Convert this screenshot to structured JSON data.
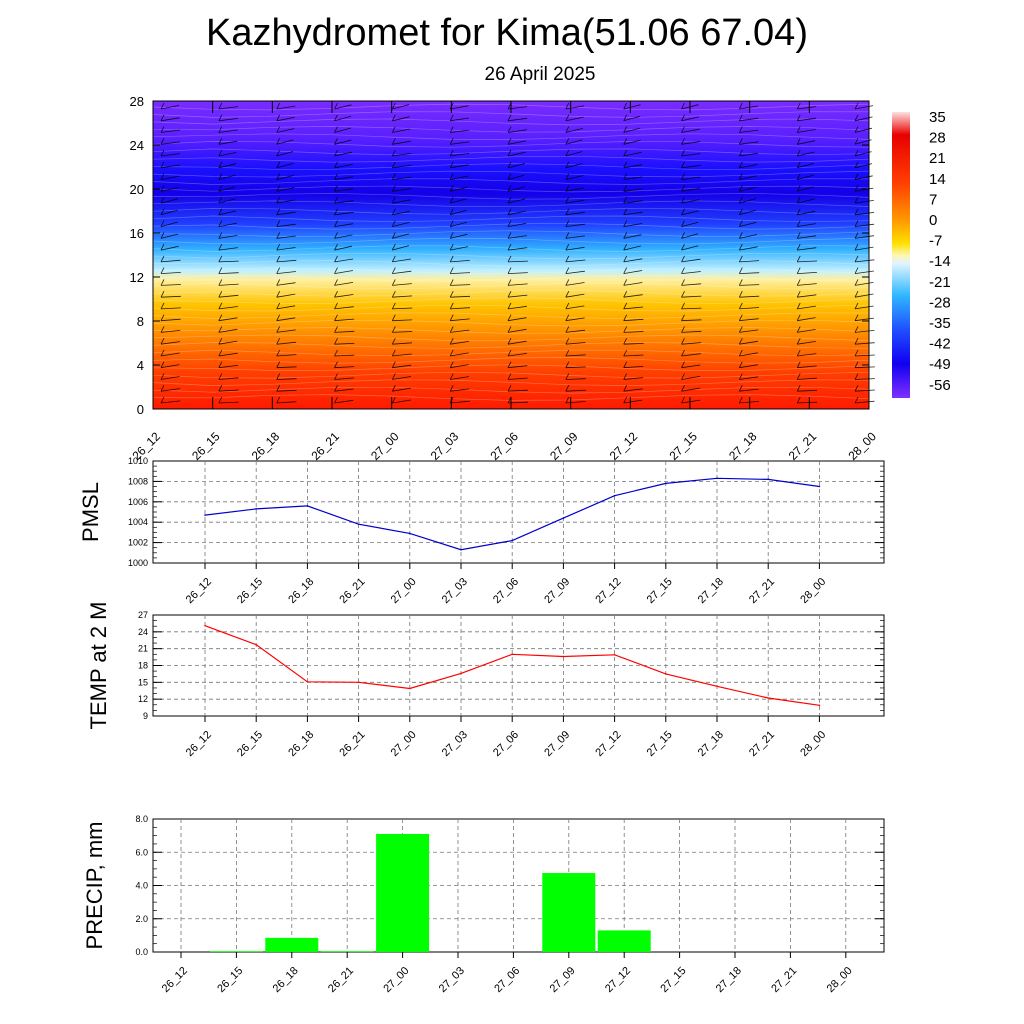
{
  "header": {
    "title": "Kazhydromet for Kima(51.06 67.04)",
    "subtitle": "26 April 2025"
  },
  "chart_data": [
    {
      "type": "heatmap",
      "title": "",
      "ylim": [
        0,
        28
      ],
      "yticks": [
        "0",
        "4",
        "8",
        "12",
        "16",
        "20",
        "24",
        "28"
      ],
      "xticks": [
        "26_12",
        "26_15",
        "26_18",
        "26_21",
        "27_00",
        "27_03",
        "27_06",
        "27_09",
        "27_12",
        "27_15",
        "27_18",
        "27_21",
        "28_00"
      ],
      "colorbar_labels": [
        "35",
        "28",
        "21",
        "14",
        "7",
        "0",
        "-7",
        "-14",
        "-21",
        "-28",
        "-35",
        "-42",
        "-49",
        "-56"
      ],
      "colors": {
        "warm": "#ff2a00",
        "mid": "#ffd500",
        "cold": "#1a00ff",
        "top": "#7a2bff"
      }
    },
    {
      "type": "line",
      "ylabel": "PMSL",
      "ylim": [
        1000,
        1010
      ],
      "yticks": [
        "1000",
        "1002",
        "1004",
        "1006",
        "1008",
        "1010"
      ],
      "categories": [
        "26_12",
        "26_15",
        "26_18",
        "26_21",
        "27_00",
        "27_03",
        "27_06",
        "27_09",
        "27_12",
        "27_15",
        "27_18",
        "27_21",
        "28_00"
      ],
      "values": [
        1004.7,
        1005.3,
        1005.6,
        1003.8,
        1002.9,
        1001.3,
        1002.2,
        1004.4,
        1006.6,
        1007.8,
        1008.3,
        1008.2,
        1007.5
      ],
      "color": "#0000cc"
    },
    {
      "type": "line",
      "ylabel": "TEMP at 2 M",
      "ylim": [
        9,
        27
      ],
      "yticks": [
        "9",
        "12",
        "15",
        "18",
        "21",
        "24",
        "27"
      ],
      "categories": [
        "26_12",
        "26_15",
        "26_18",
        "26_21",
        "27_00",
        "27_03",
        "27_06",
        "27_09",
        "27_12",
        "27_15",
        "27_18",
        "27_21",
        "28_00"
      ],
      "values": [
        25.1,
        21.7,
        15.1,
        15.0,
        13.9,
        16.6,
        20.0,
        19.6,
        19.9,
        16.5,
        14.3,
        12.2,
        10.9
      ],
      "color": "#ff0000"
    },
    {
      "type": "bar",
      "ylabel": "PRECIP, mm",
      "ylim": [
        0,
        8
      ],
      "yticks": [
        "0.0",
        "2.0",
        "4.0",
        "6.0",
        "8.0"
      ],
      "categories": [
        "26_12",
        "26_15",
        "26_18",
        "26_21",
        "27_00",
        "27_03",
        "27_06",
        "27_09",
        "27_12",
        "27_15",
        "27_18",
        "27_21",
        "28_00"
      ],
      "values": [
        0,
        0.05,
        0.85,
        0.05,
        7.1,
        0,
        0,
        4.75,
        1.3,
        0,
        0,
        0,
        0
      ],
      "color": "#00ff00"
    }
  ]
}
